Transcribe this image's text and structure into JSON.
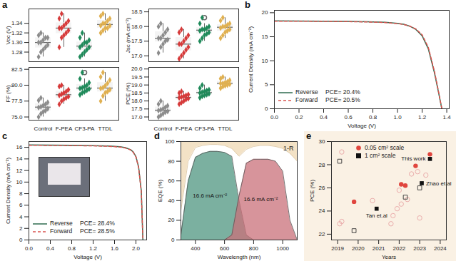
{
  "chart_data": [
    {
      "type": "box",
      "title": "a",
      "y_label": "Voc (V)",
      "tick_labels": "y",
      "marker": "diamond",
      "categories": [
        "Control",
        "F-PEA",
        "CF3-PA",
        "TTDL"
      ],
      "colors": [
        "#8c8c8c",
        "#d63a3a",
        "#1f8a5a",
        "#e0b050"
      ],
      "values": [
        [
          1.27,
          1.28,
          1.285,
          1.29,
          1.295,
          1.3,
          1.3,
          1.305,
          1.31,
          1.31,
          1.315,
          1.32
        ],
        [
          1.29,
          1.31,
          1.315,
          1.32,
          1.325,
          1.33,
          1.33,
          1.335,
          1.34,
          1.345,
          1.35,
          1.36
        ],
        [
          1.27,
          1.275,
          1.28,
          1.285,
          1.29,
          1.29,
          1.295,
          1.3,
          1.3,
          1.305,
          1.31,
          1.32
        ],
        [
          1.32,
          1.325,
          1.33,
          1.33,
          1.335,
          1.335,
          1.34,
          1.34,
          1.345,
          1.35,
          1.355,
          1.36
        ]
      ],
      "ylim": [
        1.26,
        1.37
      ],
      "yticks": [
        1.28,
        {
          "value": 1.3,
          "label": "1.30"
        },
        1.32,
        1.34
      ]
    },
    {
      "type": "box",
      "y_label": "Jsc (mA cm⁻²)",
      "tick_labels": "y",
      "marker": "diamond",
      "categories": [
        "Control",
        "F-PEA",
        "CF3-PA",
        "TTDL"
      ],
      "colors": [
        "#8c8c8c",
        "#d63a3a",
        "#1f8a5a",
        "#e0b050"
      ],
      "values": [
        [
          17.1,
          17.3,
          17.4,
          17.5,
          17.55,
          17.6,
          17.6,
          17.7,
          17.8,
          17.9,
          18.0,
          18.1
        ],
        [
          16.9,
          17.0,
          17.1,
          17.2,
          17.3,
          17.4,
          17.4,
          17.5,
          17.6,
          17.7,
          17.8,
          17.9
        ],
        [
          17.5,
          17.6,
          17.7,
          17.75,
          17.8,
          17.85,
          17.9,
          17.9,
          17.95,
          18.0,
          18.1,
          18.3
        ],
        [
          17.6,
          17.7,
          17.8,
          17.85,
          17.9,
          17.95,
          18.0,
          18.0,
          18.05,
          18.1,
          18.2,
          18.3
        ]
      ],
      "ylim": [
        16.8,
        18.6
      ],
      "yticks": [
        {
          "value": 17,
          "label": "17.0"
        },
        17.5,
        {
          "value": 18,
          "label": "18.0"
        },
        18.5
      ]
    },
    {
      "type": "box",
      "y_label": "FF (%)",
      "marker": "diamond",
      "categories": [
        "Control",
        "F-PEA",
        "CF3-PA",
        "TTDL"
      ],
      "colors": [
        "#8c8c8c",
        "#d63a3a",
        "#1f8a5a",
        "#e0b050"
      ],
      "values": [
        [
          75.0,
          75.5,
          75.8,
          76.0,
          76.3,
          76.5,
          76.6,
          76.8,
          77.0,
          77.3,
          77.6,
          78.0
        ],
        [
          77.0,
          77.5,
          77.8,
          78.0,
          78.2,
          78.4,
          78.6,
          78.8,
          79.0,
          79.3,
          79.8,
          80.0
        ],
        [
          78.5,
          78.8,
          79.0,
          79.2,
          79.4,
          79.5,
          79.6,
          79.8,
          80.0,
          80.4,
          81.0,
          82.0
        ],
        [
          77.5,
          78.3,
          78.8,
          79.0,
          79.3,
          79.5,
          79.6,
          79.9,
          80.3,
          80.8,
          81.3,
          82.0
        ]
      ],
      "ylim": [
        74.5,
        82.8
      ],
      "yticks": [
        {
          "value": 75,
          "label": "75.0"
        },
        77.5,
        {
          "value": 80,
          "label": "80.0"
        },
        82.5
      ]
    },
    {
      "type": "box",
      "y_label": "PCE (%)",
      "marker": "diamond",
      "categories": [
        "Control",
        "F-PEA",
        "CF3-PA",
        "TTDL"
      ],
      "colors": [
        "#8c8c8c",
        "#d63a3a",
        "#1f8a5a",
        "#e0b050"
      ],
      "values": [
        [
          17.0,
          17.1,
          17.2,
          17.3,
          17.35,
          17.4,
          17.45,
          17.5,
          17.6,
          17.7,
          17.8,
          18.0
        ],
        [
          17.8,
          17.9,
          18.0,
          18.1,
          18.15,
          18.2,
          18.25,
          18.3,
          18.35,
          18.4,
          18.5,
          18.6
        ],
        [
          18.2,
          18.3,
          18.35,
          18.4,
          18.45,
          18.5,
          18.55,
          18.6,
          18.65,
          18.7,
          18.8,
          19.0
        ],
        [
          18.8,
          18.9,
          18.95,
          19.0,
          19.05,
          19.1,
          19.1,
          19.15,
          19.2,
          19.3,
          19.4,
          19.5
        ]
      ],
      "ylim": [
        16.8,
        20.1
      ],
      "yticks": [
        {
          "value": 17,
          "label": "17.0"
        },
        17.5,
        {
          "value": 18,
          "label": "18.0"
        },
        18.5,
        {
          "value": 19,
          "label": "19.0"
        },
        19.5,
        {
          "value": 20,
          "label": "20.0"
        }
      ]
    },
    {
      "type": "line",
      "title": "b",
      "x_label": "Voltage (V)",
      "y_label": "Current Density (mA cm⁻²)",
      "legend": "bottom-left",
      "x": [
        0,
        0.2,
        0.4,
        0.6,
        0.8,
        0.9,
        1.0,
        1.05,
        1.1,
        1.15,
        1.2,
        1.25,
        1.3,
        1.33,
        1.36
      ],
      "series": [
        {
          "name": "Reverse",
          "label": "PCE= 20.4%",
          "color": "#2e6b4f",
          "line_style": "solid",
          "values": [
            18.3,
            18.28,
            18.25,
            18.2,
            18.1,
            18.0,
            17.8,
            17.6,
            17.2,
            16.5,
            15.2,
            12.5,
            7.5,
            3.8,
            0
          ]
        },
        {
          "name": "Forward",
          "label": "PCE= 20.5%",
          "color": "#d9534f",
          "line_style": "dashed",
          "values": [
            18.25,
            18.23,
            18.2,
            18.15,
            18.05,
            17.95,
            17.75,
            17.55,
            17.2,
            16.6,
            15.4,
            12.8,
            7.8,
            4.0,
            0
          ]
        }
      ],
      "xlim": [
        0,
        1.42
      ],
      "xticks": [
        {
          "value": 0,
          "label": "0.0"
        },
        0.2,
        0.4,
        0.6,
        0.8,
        {
          "value": 1,
          "label": "1.0"
        },
        1.2,
        1.4
      ],
      "ylim": [
        0,
        20.5
      ],
      "yticks": [
        0,
        5,
        10,
        15,
        20
      ]
    },
    {
      "type": "line",
      "title": "c",
      "x_label": "Voltage (V)",
      "y_label": "Current Density (mA cm⁻²)",
      "legend": "bottom-left",
      "x": [
        0,
        0.4,
        0.8,
        1.2,
        1.5,
        1.7,
        1.8,
        1.9,
        1.95,
        2.0,
        2.05,
        2.1,
        2.13
      ],
      "series": [
        {
          "name": "Reverse",
          "label": "PCE= 28.4%",
          "color": "#2e6b4f",
          "line_style": "solid",
          "values": [
            16.4,
            16.38,
            16.35,
            16.3,
            16.22,
            16.1,
            15.95,
            15.6,
            15.2,
            14.4,
            12.6,
            8.5,
            0
          ]
        },
        {
          "name": "Forward",
          "label": "PCE= 28.5%",
          "color": "#d9534f",
          "line_style": "dashed",
          "values": [
            16.35,
            16.33,
            16.3,
            16.25,
            16.18,
            16.05,
            15.9,
            15.55,
            15.15,
            14.35,
            12.5,
            8.3,
            0
          ]
        }
      ],
      "xlim": [
        0,
        2.2
      ],
      "xticks": [
        {
          "value": 0,
          "label": "0.0"
        },
        0.4,
        0.8,
        1.2,
        1.6,
        {
          "value": 2,
          "label": "2.0"
        }
      ],
      "ylim": [
        0,
        17
      ],
      "yticks": [
        0,
        2,
        4,
        6,
        8,
        10,
        12,
        14,
        16
      ]
    },
    {
      "type": "area",
      "title": "d",
      "x_label": "Wavelength (nm)",
      "y_label": "EQE (%)",
      "x": [
        300,
        350,
        400,
        450,
        500,
        550,
        600,
        650,
        700,
        750,
        800,
        850,
        900,
        950,
        1000,
        1050,
        1100
      ],
      "series": [
        {
          "name": "1-R",
          "color": "#f3e2c6",
          "values": [
            30,
            80,
            94,
            96,
            97,
            97,
            96,
            93,
            85,
            92,
            95,
            96,
            96,
            95,
            93,
            88,
            80
          ]
        },
        {
          "annotation": "16.6 mA cm⁻²",
          "color": "#4f9680",
          "values": [
            5,
            60,
            84,
            88,
            90,
            90,
            89,
            85,
            40,
            5,
            0,
            0,
            0,
            0,
            0,
            0,
            0
          ]
        },
        {
          "annotation": "16.6 mA cm⁻²",
          "color": "#c9707a",
          "values": [
            0,
            0,
            0,
            0,
            0,
            0,
            0,
            5,
            45,
            78,
            82,
            82,
            82,
            80,
            70,
            20,
            0
          ]
        }
      ],
      "xlim": [
        300,
        1100
      ],
      "xticks": [
        400,
        600,
        800,
        1000
      ],
      "ylim": [
        0,
        100
      ],
      "yticks": [
        0,
        20,
        40,
        60,
        80,
        100
      ]
    },
    {
      "type": "scatter",
      "title": "e",
      "x_label": "Years",
      "y_label": "PCE (%)",
      "legend": "top-left",
      "series": [
        {
          "marker": "circle-open",
          "color": "#e8a5a5",
          "x": [
            2019.1,
            2019.2,
            2019.2,
            2020.7,
            2021.7,
            2021.9,
            2022.1,
            2022.4,
            2022.0,
            2022.6,
            2022.9,
            2023.0,
            2023.3,
            2021.6
          ],
          "values": [
            22.9,
            23.1,
            29.1,
            24.9,
            23.6,
            24.2,
            24.6,
            25.0,
            25.8,
            27.2,
            27.4,
            23.4,
            27.1,
            22.9
          ]
        },
        {
          "marker": "square-open",
          "color": "#333333",
          "x": [
            2019.1,
            2019.8,
            2022.3,
            2023.0
          ],
          "values": [
            28.3,
            22.3,
            25.2,
            26.0
          ]
        },
        {
          "name": "0.05 cm² scale",
          "marker": "circle",
          "color": "#e0453e",
          "x": [
            2019.8,
            2022.1,
            2022.3,
            2022.8,
            2023.5
          ],
          "values": [
            24.8,
            26.3,
            26.2,
            27.9,
            28.9
          ]
        },
        {
          "name": "1 cm² scale",
          "marker": "square",
          "color": "#111111",
          "x": [
            2020.9,
            2023.1,
            2023.5
          ],
          "values": [
            24.2,
            26.4,
            28.5
          ],
          "annotations": [
            "Tan et.al",
            "Zhao et.al",
            "This work"
          ]
        }
      ],
      "xlim": [
        2018.7,
        2024.3
      ],
      "xticks": [
        2019,
        2020,
        2021,
        2022,
        2023,
        2024
      ],
      "ylim": [
        21.5,
        30
      ],
      "yticks": [
        22,
        24,
        26,
        28,
        30
      ]
    }
  ]
}
